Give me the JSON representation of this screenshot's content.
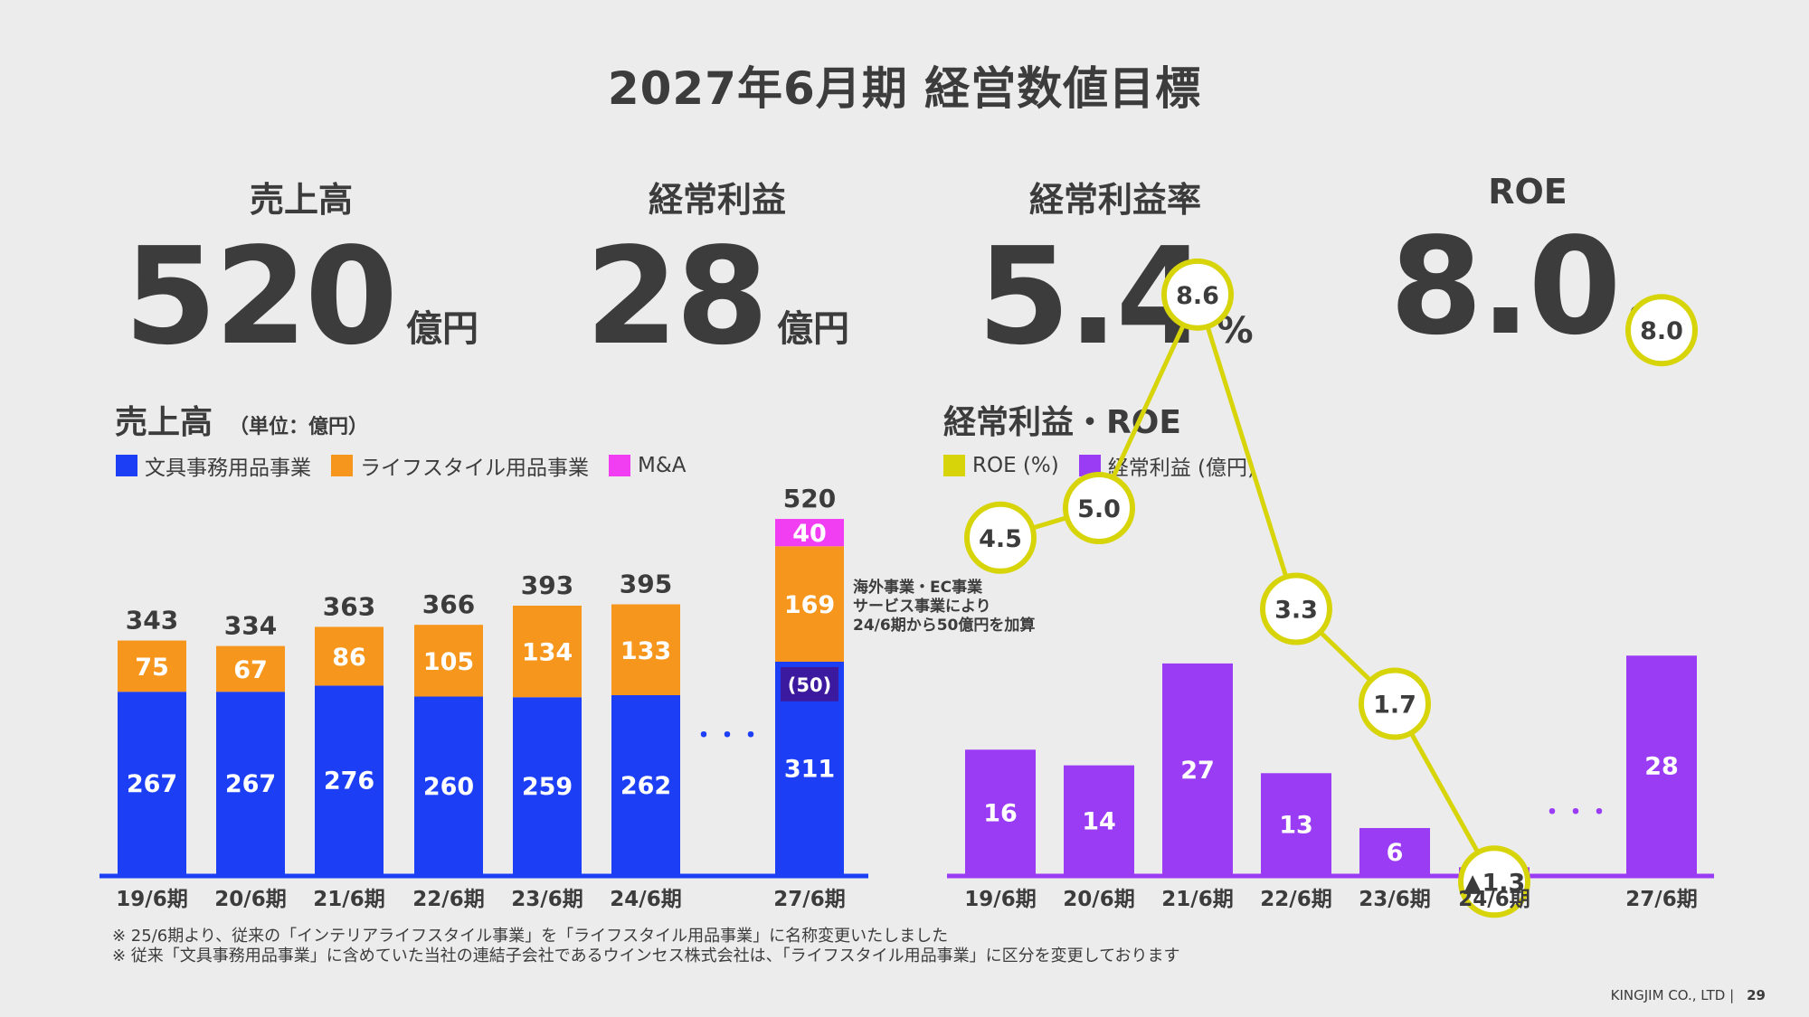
{
  "page": {
    "title": "2027年6月期 経営数値目標",
    "footer_company": "KINGJIM CO., LTD |",
    "page_number": "29"
  },
  "kpis": [
    {
      "label": "売上高",
      "value": "520",
      "unit": "億円"
    },
    {
      "label": "経常利益",
      "value": "28",
      "unit": "億円"
    },
    {
      "label": "経常利益率",
      "value": "5.4",
      "unit": "%"
    },
    {
      "label": "ROE",
      "value": "8.0",
      "unit": "%"
    }
  ],
  "sales_section": {
    "title": "売上高",
    "unit_note": "（単位：億円）"
  },
  "profit_section": {
    "title": "経常利益・ROE"
  },
  "notes": [
    "※ 25/6期より、従来の「インテリアライフスタイル事業」を「ライフスタイル用品事業」に名称変更いたしました",
    "※ 従来「文具事務用品事業」に含めていた当社の連結子会社であるウインセス株式会社は、「ライフスタイル用品事業」に区分を変更しております"
  ],
  "colors": {
    "stationery": "#1c3ff5",
    "lifestyle": "#f7961c",
    "ma": "#f23ef2",
    "overseas": "#3c1aa0",
    "roe": "#d7d40a",
    "profit": "#9b3cf5",
    "axis": "#1c3ff5",
    "axis2": "#9b3cf5"
  },
  "chart_data": [
    {
      "type": "bar",
      "stacked": true,
      "title": "売上高",
      "unit": "億円",
      "categories": [
        "19/6期",
        "20/6期",
        "21/6期",
        "22/6期",
        "23/6期",
        "24/6期",
        "27/6期"
      ],
      "series": [
        {
          "name": "文具事務用品事業",
          "values": [
            267,
            267,
            276,
            260,
            259,
            262,
            311
          ]
        },
        {
          "name": "ライフスタイル用品事業",
          "values": [
            75,
            67,
            86,
            105,
            134,
            133,
            169
          ]
        },
        {
          "name": "M&A",
          "values": [
            0,
            0,
            0,
            0,
            0,
            0,
            40
          ]
        }
      ],
      "totals": [
        "343",
        "334",
        "363",
        "366",
        "393",
        "395",
        "520"
      ],
      "bar_labels": {
        "stationery": [
          "267",
          "267",
          "276",
          "260",
          "259",
          "262",
          "311"
        ],
        "lifestyle": [
          "75",
          "67",
          "86",
          "105",
          "134",
          "133",
          "169"
        ],
        "ma": "40"
      },
      "overseas_inner": {
        "value": 50,
        "label": "(50)"
      },
      "annotation": [
        "海外事業・EC事業",
        "サービス事業により",
        "24/6期から50億円を加算"
      ],
      "ellipsis": "・・・",
      "ylim": [
        0,
        540
      ]
    },
    {
      "type": "bar+line",
      "title": "経常利益・ROE",
      "categories": [
        "19/6期",
        "20/6期",
        "21/6期",
        "22/6期",
        "23/6期",
        "24/6期",
        "27/6期"
      ],
      "legend": [
        "ROE (%)",
        "経常利益 (億円)"
      ],
      "series": [
        {
          "name": "経常利益 (億円)",
          "type": "bar",
          "values": [
            16,
            14,
            27,
            13,
            6,
            1,
            28
          ],
          "labels": [
            "16",
            "14",
            "27",
            "13",
            "6",
            "",
            "28"
          ]
        },
        {
          "name": "ROE (%)",
          "type": "line",
          "values": [
            4.5,
            5.0,
            8.6,
            3.3,
            1.7,
            -1.3,
            8.0
          ],
          "labels": [
            "4.5",
            "5.0",
            "8.6",
            "3.3",
            "1.7",
            "▲1.3",
            "8.0"
          ]
        }
      ],
      "ellipsis": "・・・"
    }
  ]
}
